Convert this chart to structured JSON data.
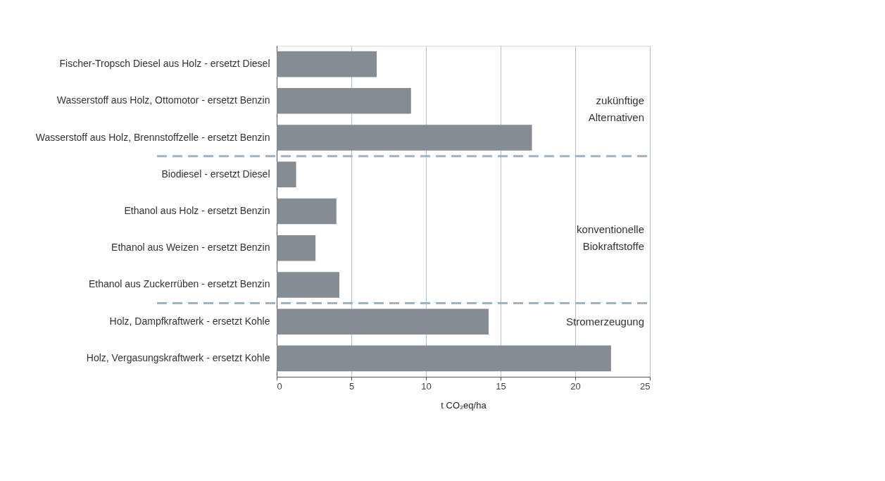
{
  "chart_data": {
    "type": "bar",
    "orientation": "horizontal",
    "xlabel": "t CO₂eq/ha",
    "categories": [
      "Fischer-Tropsch Diesel aus Holz - ersetzt Diesel",
      "Wasserstoff aus Holz, Ottomotor - ersetzt Benzin",
      "Wasserstoff aus Holz, Brennstoffzelle - ersetzt Benzin",
      "Biodiesel - ersetzt Diesel",
      "Ethanol aus Holz - ersetzt Benzin",
      "Ethanol aus Weizen - ersetzt Benzin",
      "Ethanol aus Zuckerrüben - ersetzt Benzin",
      "Holz, Dampfkraftwerk - ersetzt Kohle",
      "Holz, Vergasungskraftwerk - ersetzt Kohle"
    ],
    "values": [
      6.7,
      9.0,
      17.1,
      1.3,
      4.0,
      2.6,
      4.2,
      14.2,
      22.4
    ],
    "color": "#858c93",
    "xlim": [
      0,
      25
    ],
    "xticks": [
      0,
      5,
      10,
      15,
      20,
      25
    ],
    "grid": "x",
    "annotations": [
      "zukünftige\nAlternativen",
      "konventionelle\nBiokraftstoffe",
      "Stromerzeugung"
    ]
  }
}
